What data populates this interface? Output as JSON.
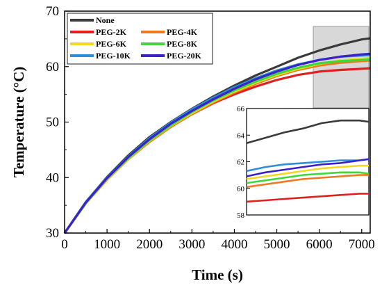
{
  "chart_data": {
    "type": "line",
    "xlabel": "Time (s)",
    "ylabel": "Temperature (°C)",
    "xlim": [
      0,
      7200
    ],
    "ylim": [
      30,
      70
    ],
    "xticks": [
      0,
      1000,
      2000,
      3000,
      4000,
      5000,
      6000,
      7000
    ],
    "yticks": [
      30,
      40,
      50,
      60,
      70
    ],
    "grid": false,
    "legend_position": "top-left",
    "series": [
      {
        "name": "None",
        "color": "#3a3a3a",
        "x": [
          0,
          500,
          1000,
          1500,
          2000,
          2500,
          3000,
          3500,
          4000,
          4500,
          5000,
          5500,
          6000,
          6500,
          7000,
          7200
        ],
        "y": [
          30,
          35.6,
          40.1,
          44.0,
          47.3,
          50.0,
          52.4,
          54.6,
          56.6,
          58.4,
          60.0,
          61.6,
          62.9,
          64.0,
          64.9,
          65.1
        ]
      },
      {
        "name": "PEG-2K",
        "color": "#e0201e",
        "x": [
          0,
          500,
          1000,
          1500,
          2000,
          2500,
          3000,
          3500,
          4000,
          4500,
          5000,
          5500,
          6000,
          6500,
          7000,
          7200
        ],
        "y": [
          30,
          35.4,
          39.7,
          43.4,
          46.5,
          49.2,
          51.4,
          53.4,
          55.0,
          56.4,
          57.6,
          58.5,
          59.1,
          59.4,
          59.6,
          59.7
        ]
      },
      {
        "name": "PEG-4K",
        "color": "#f07820",
        "x": [
          0,
          500,
          1000,
          1500,
          2000,
          2500,
          3000,
          3500,
          4000,
          4500,
          5000,
          5500,
          6000,
          6500,
          7000,
          7200
        ],
        "y": [
          30,
          35.3,
          39.6,
          43.3,
          46.4,
          49.1,
          51.4,
          53.5,
          55.3,
          56.9,
          58.3,
          59.4,
          60.2,
          60.7,
          61.0,
          61.1
        ]
      },
      {
        "name": "PEG-6K",
        "color": "#f2d820",
        "x": [
          0,
          500,
          1000,
          1500,
          2000,
          2500,
          3000,
          3500,
          4000,
          4500,
          5000,
          5500,
          6000,
          6500,
          7000,
          7200
        ],
        "y": [
          30,
          35.3,
          39.7,
          43.4,
          46.6,
          49.3,
          51.6,
          53.7,
          55.5,
          57.1,
          58.5,
          59.6,
          60.5,
          61.1,
          61.4,
          61.5
        ]
      },
      {
        "name": "PEG-8K",
        "color": "#3ed83a",
        "x": [
          0,
          500,
          1000,
          1500,
          2000,
          2500,
          3000,
          3500,
          4000,
          4500,
          5000,
          5500,
          6000,
          6500,
          7000,
          7200
        ],
        "y": [
          30,
          35.4,
          39.8,
          43.5,
          46.7,
          49.4,
          51.8,
          53.9,
          55.7,
          57.3,
          58.7,
          59.8,
          60.6,
          61.0,
          61.2,
          61.3
        ]
      },
      {
        "name": "PEG-10K",
        "color": "#2f8ed8",
        "x": [
          0,
          500,
          1000,
          1500,
          2000,
          2500,
          3000,
          3500,
          4000,
          4500,
          5000,
          5500,
          6000,
          6500,
          7000,
          7200
        ],
        "y": [
          30,
          35.6,
          40.0,
          43.8,
          47.1,
          49.9,
          52.3,
          54.4,
          56.3,
          57.9,
          59.3,
          60.4,
          61.2,
          61.8,
          62.0,
          62.1
        ]
      },
      {
        "name": "PEG-20K",
        "color": "#3a22c8",
        "x": [
          0,
          500,
          1000,
          1500,
          2000,
          2500,
          3000,
          3500,
          4000,
          4500,
          5000,
          5500,
          6000,
          6500,
          7000,
          7200
        ],
        "y": [
          30,
          35.5,
          39.9,
          43.7,
          46.9,
          49.7,
          52.0,
          54.1,
          56.0,
          57.7,
          59.1,
          60.3,
          61.2,
          61.8,
          62.2,
          62.3
        ]
      }
    ],
    "inset": {
      "xlim": [
        5900,
        7200
      ],
      "ylim": [
        58,
        66
      ],
      "yticks": [
        58,
        60,
        62,
        64,
        66
      ],
      "series": [
        {
          "color": "#3a3a3a",
          "x": [
            5900,
            6100,
            6300,
            6500,
            6700,
            6900,
            7100,
            7200
          ],
          "y": [
            63.4,
            63.8,
            64.2,
            64.5,
            64.9,
            65.1,
            65.1,
            65.0
          ]
        },
        {
          "color": "#2f8ed8",
          "x": [
            5900,
            6100,
            6300,
            6500,
            6700,
            6900,
            7100,
            7200
          ],
          "y": [
            61.3,
            61.6,
            61.8,
            61.9,
            62.0,
            62.1,
            62.1,
            62.2
          ]
        },
        {
          "color": "#3a22c8",
          "x": [
            5900,
            6100,
            6300,
            6500,
            6700,
            6900,
            7100,
            7200
          ],
          "y": [
            60.9,
            61.2,
            61.4,
            61.6,
            61.8,
            61.9,
            62.1,
            62.2
          ]
        },
        {
          "color": "#f2d820",
          "x": [
            5900,
            6100,
            6300,
            6500,
            6700,
            6900,
            7100,
            7200
          ],
          "y": [
            60.7,
            60.9,
            61.1,
            61.3,
            61.5,
            61.6,
            61.7,
            61.7
          ]
        },
        {
          "color": "#3ed83a",
          "x": [
            5900,
            6100,
            6300,
            6500,
            6700,
            6900,
            7100,
            7200
          ],
          "y": [
            60.4,
            60.6,
            60.8,
            61.0,
            61.1,
            61.2,
            61.2,
            61.1
          ]
        },
        {
          "color": "#f07820",
          "x": [
            5900,
            6100,
            6300,
            6500,
            6700,
            6900,
            7100,
            7200
          ],
          "y": [
            60.1,
            60.3,
            60.5,
            60.7,
            60.8,
            60.9,
            61.0,
            61.0
          ]
        },
        {
          "color": "#e0201e",
          "x": [
            5900,
            6100,
            6300,
            6500,
            6700,
            6900,
            7100,
            7200
          ],
          "y": [
            59.0,
            59.1,
            59.2,
            59.3,
            59.4,
            59.5,
            59.6,
            59.6
          ]
        }
      ]
    }
  }
}
